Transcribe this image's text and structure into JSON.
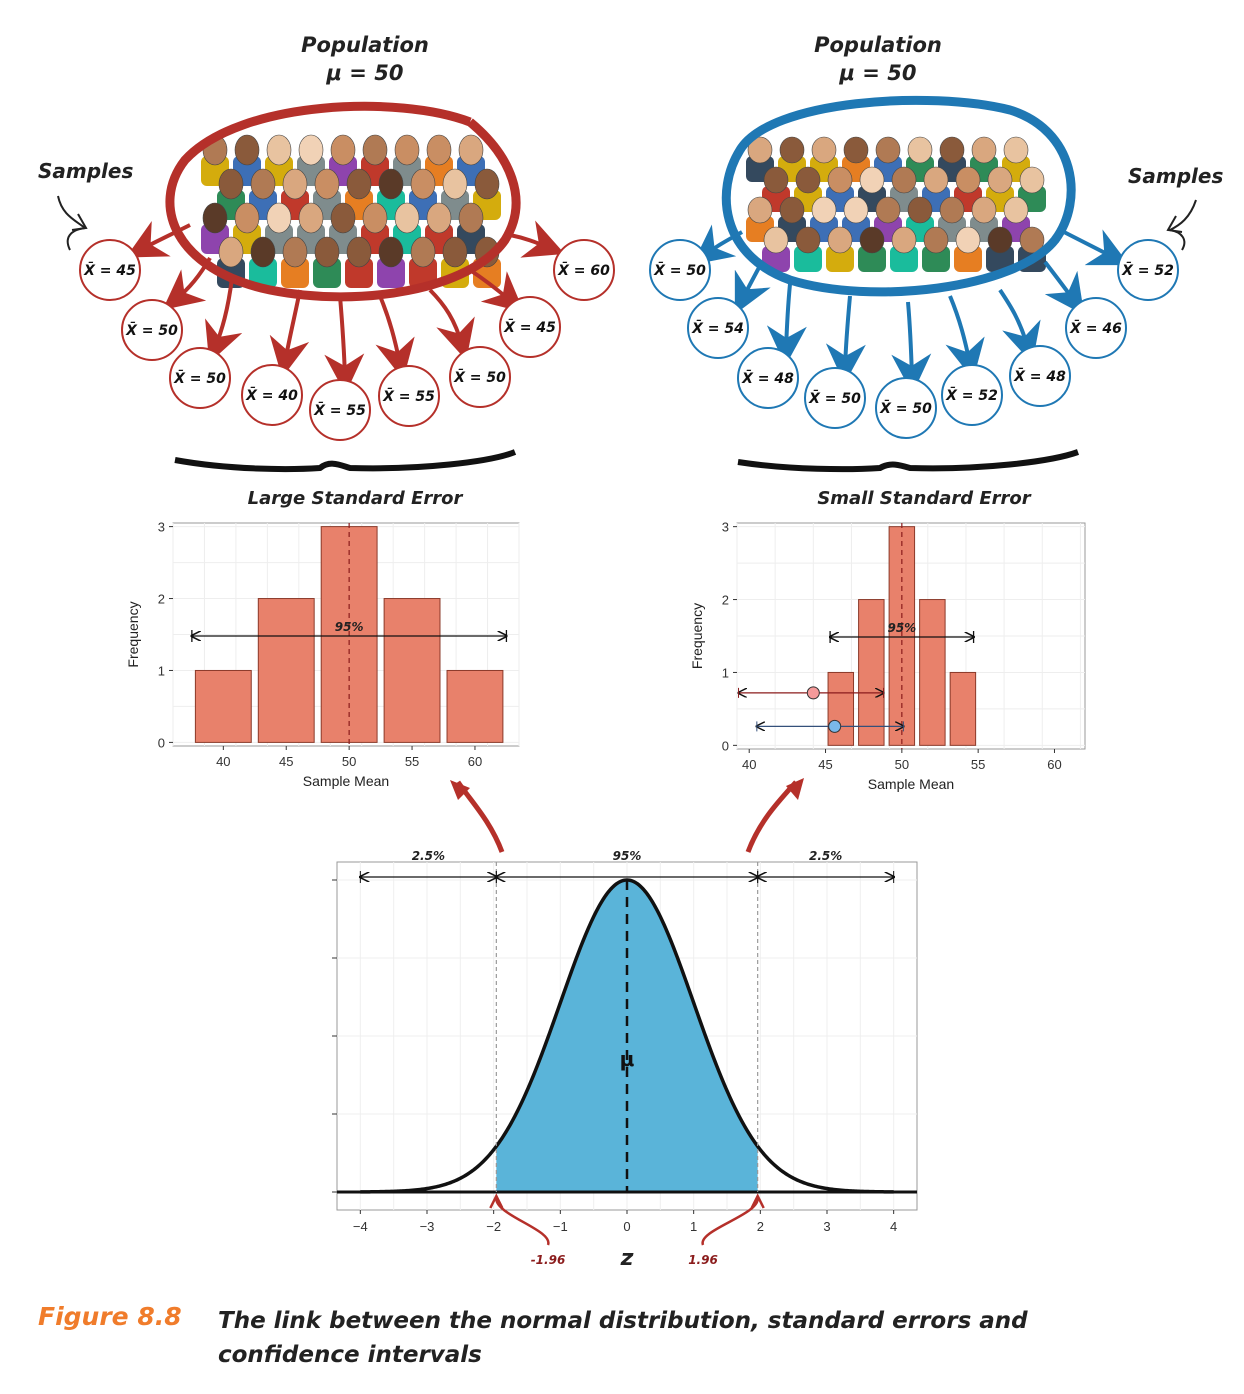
{
  "left": {
    "title": "Population",
    "mu": "μ = 50",
    "samples_label": "Samples",
    "color": "#b5302a",
    "means": [
      "X̄ = 45",
      "X̄ = 50",
      "X̄ = 50",
      "X̄ = 40",
      "X̄ = 55",
      "X̄ = 55",
      "X̄ = 50",
      "X̄ = 45",
      "X̄ = 60"
    ],
    "hist_title": "Large Standard Error"
  },
  "right": {
    "title": "Population",
    "mu": "μ = 50",
    "samples_label": "Samples",
    "color": "#1f78b4",
    "means": [
      "X̄ = 50",
      "X̄ = 54",
      "X̄ = 48",
      "X̄ = 50",
      "X̄ = 50",
      "X̄ = 52",
      "X̄ = 48",
      "X̄ = 46",
      "X̄ = 52"
    ],
    "hist_title": "Small Standard Error"
  },
  "chart_data": [
    {
      "type": "bar",
      "title": "Large Standard Error",
      "xlabel": "Sample Mean",
      "ylabel": "Frequency",
      "categories": [
        40,
        45,
        50,
        55,
        60
      ],
      "values": [
        1,
        2,
        3,
        2,
        1
      ],
      "xticks": [
        "40",
        "45",
        "50",
        "55",
        "60"
      ],
      "yticks": [
        "0",
        "1",
        "2",
        "3"
      ],
      "ylim": [
        0,
        3
      ],
      "interval_label": "95%",
      "bar_color": "#e8816b"
    },
    {
      "type": "bar",
      "title": "Small Standard Error",
      "xlabel": "Sample Mean",
      "ylabel": "Frequency",
      "categories": [
        46,
        48,
        50,
        52,
        54
      ],
      "values": [
        1,
        2,
        3,
        2,
        1
      ],
      "xticks": [
        "40",
        "45",
        "50",
        "55",
        "60"
      ],
      "yticks": [
        "0",
        "1",
        "2",
        "3"
      ],
      "xlim": [
        40,
        60
      ],
      "ylim": [
        0,
        3
      ],
      "interval_label": "95%",
      "bar_color": "#e8816b",
      "point_colors": [
        "#f59a9a",
        "#7ab8ea"
      ]
    },
    {
      "type": "area",
      "xlabel": "z",
      "xticks": [
        "−4",
        "−3",
        "−2",
        "−1",
        "0",
        "1",
        "2",
        "3",
        "4"
      ],
      "xlim": [
        -4,
        4
      ],
      "shaded_region": [
        -1.96,
        1.96
      ],
      "center_label": "μ",
      "region_labels": [
        "2.5%",
        "95%",
        "2.5%"
      ],
      "critical_labels": [
        "-1.96",
        "1.96"
      ],
      "fill_color": "#5ab4d9"
    }
  ],
  "caption": {
    "label": "Figure 8.8",
    "text": "The link between the normal distribution, standard errors and confidence intervals"
  }
}
